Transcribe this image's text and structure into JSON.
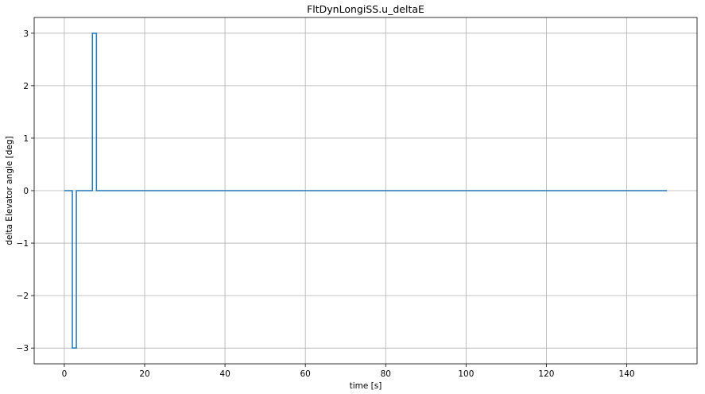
{
  "chart_data": {
    "type": "line",
    "title": "FltDynLongiSS.u_deltaE",
    "xlabel": "time [s]",
    "ylabel": "delta Elevator angle [deg]",
    "xlim": [
      -7.5,
      157.5
    ],
    "ylim": [
      -3.3,
      3.3
    ],
    "xticks": [
      0,
      20,
      40,
      60,
      80,
      100,
      120,
      140
    ],
    "xtick_labels": [
      "0",
      "20",
      "40",
      "60",
      "80",
      "100",
      "120",
      "140"
    ],
    "yticks": [
      -3,
      -2,
      -1,
      0,
      1,
      2,
      3
    ],
    "ytick_labels": [
      "−3",
      "−2",
      "−1",
      "0",
      "1",
      "2",
      "3"
    ],
    "grid": true,
    "step": "post",
    "series": [
      {
        "color": "#1f77b4",
        "x": [
          0,
          2,
          2.5,
          3,
          7,
          7.5,
          8,
          150
        ],
        "y": [
          0,
          -3,
          -3,
          0,
          3,
          3,
          0,
          0
        ]
      }
    ]
  }
}
